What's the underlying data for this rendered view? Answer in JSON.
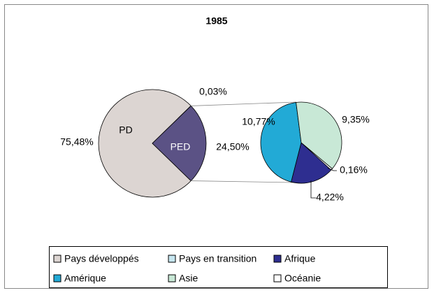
{
  "chart_data": {
    "type": "pie-of-pie",
    "title": "1985",
    "slices": [
      {
        "name": "Pays développés",
        "label": "PD",
        "value": 75.48,
        "value_label": "75,48%",
        "color": "#dcd5d2"
      },
      {
        "name": "Pays en transition",
        "value": 0.03,
        "value_label": "0,03%",
        "color": "#c6e6f0"
      }
    ],
    "second_pie": {
      "label": "PED",
      "value": 24.5,
      "value_label": "24,50%",
      "color": "#5b5285",
      "slices": [
        {
          "name": "Afrique",
          "value": 4.22,
          "value_label": "4,22%",
          "color": "#2e2e90"
        },
        {
          "name": "Amérique",
          "value": 10.77,
          "value_label": "10,77%",
          "color": "#22aad6"
        },
        {
          "name": "Asie",
          "value": 9.35,
          "value_label": "9,35%",
          "color": "#c8e8d6"
        },
        {
          "name": "Océanie",
          "value": 0.16,
          "value_label": "0,16%",
          "color": "#ffffff"
        }
      ]
    }
  }
}
